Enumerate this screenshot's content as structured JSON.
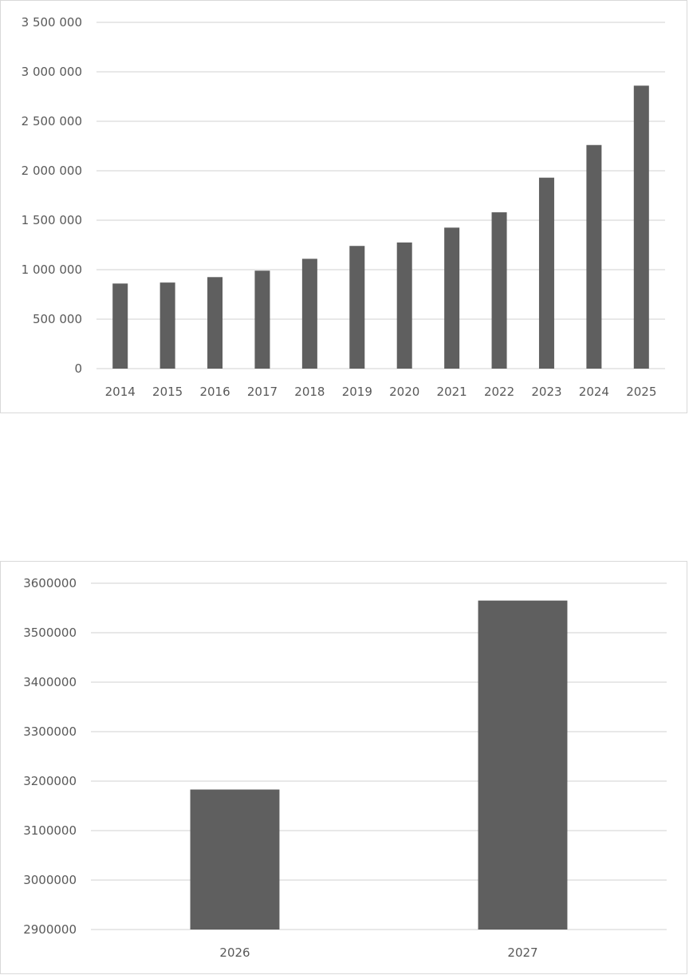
{
  "chart_data": [
    {
      "type": "bar",
      "title": "",
      "xlabel": "",
      "ylabel": "",
      "categories": [
        "2014",
        "2015",
        "2016",
        "2017",
        "2018",
        "2019",
        "2020",
        "2021",
        "2022",
        "2023",
        "2024",
        "2025"
      ],
      "values": [
        860000,
        870000,
        925000,
        990000,
        1110000,
        1240000,
        1275000,
        1425000,
        1580000,
        1930000,
        2260000,
        2860000
      ],
      "ylim": [
        0,
        3500000
      ],
      "yticks": [
        0,
        500000,
        1000000,
        1500000,
        2000000,
        2500000,
        3000000,
        3500000
      ],
      "ytick_labels": [
        "0",
        "500 000",
        "1 000 000",
        "1 500 000",
        "2 000 000",
        "2 500 000",
        "3 000 000",
        "3 500 000"
      ],
      "grid": "horizontal",
      "legend": "none",
      "bar_color": "#5f5f5f"
    },
    {
      "type": "bar",
      "title": "",
      "xlabel": "",
      "ylabel": "",
      "categories": [
        "2026",
        "2027"
      ],
      "values": [
        3183000,
        3565000
      ],
      "ylim": [
        2900000,
        3600000
      ],
      "yticks": [
        2900000,
        3000000,
        3100000,
        3200000,
        3300000,
        3400000,
        3500000,
        3600000
      ],
      "ytick_labels": [
        "2900000",
        "3000000",
        "3100000",
        "3200000",
        "3300000",
        "3400000",
        "3500000",
        "3600000"
      ],
      "grid": "horizontal",
      "legend": "none",
      "bar_color": "#5f5f5f"
    }
  ]
}
